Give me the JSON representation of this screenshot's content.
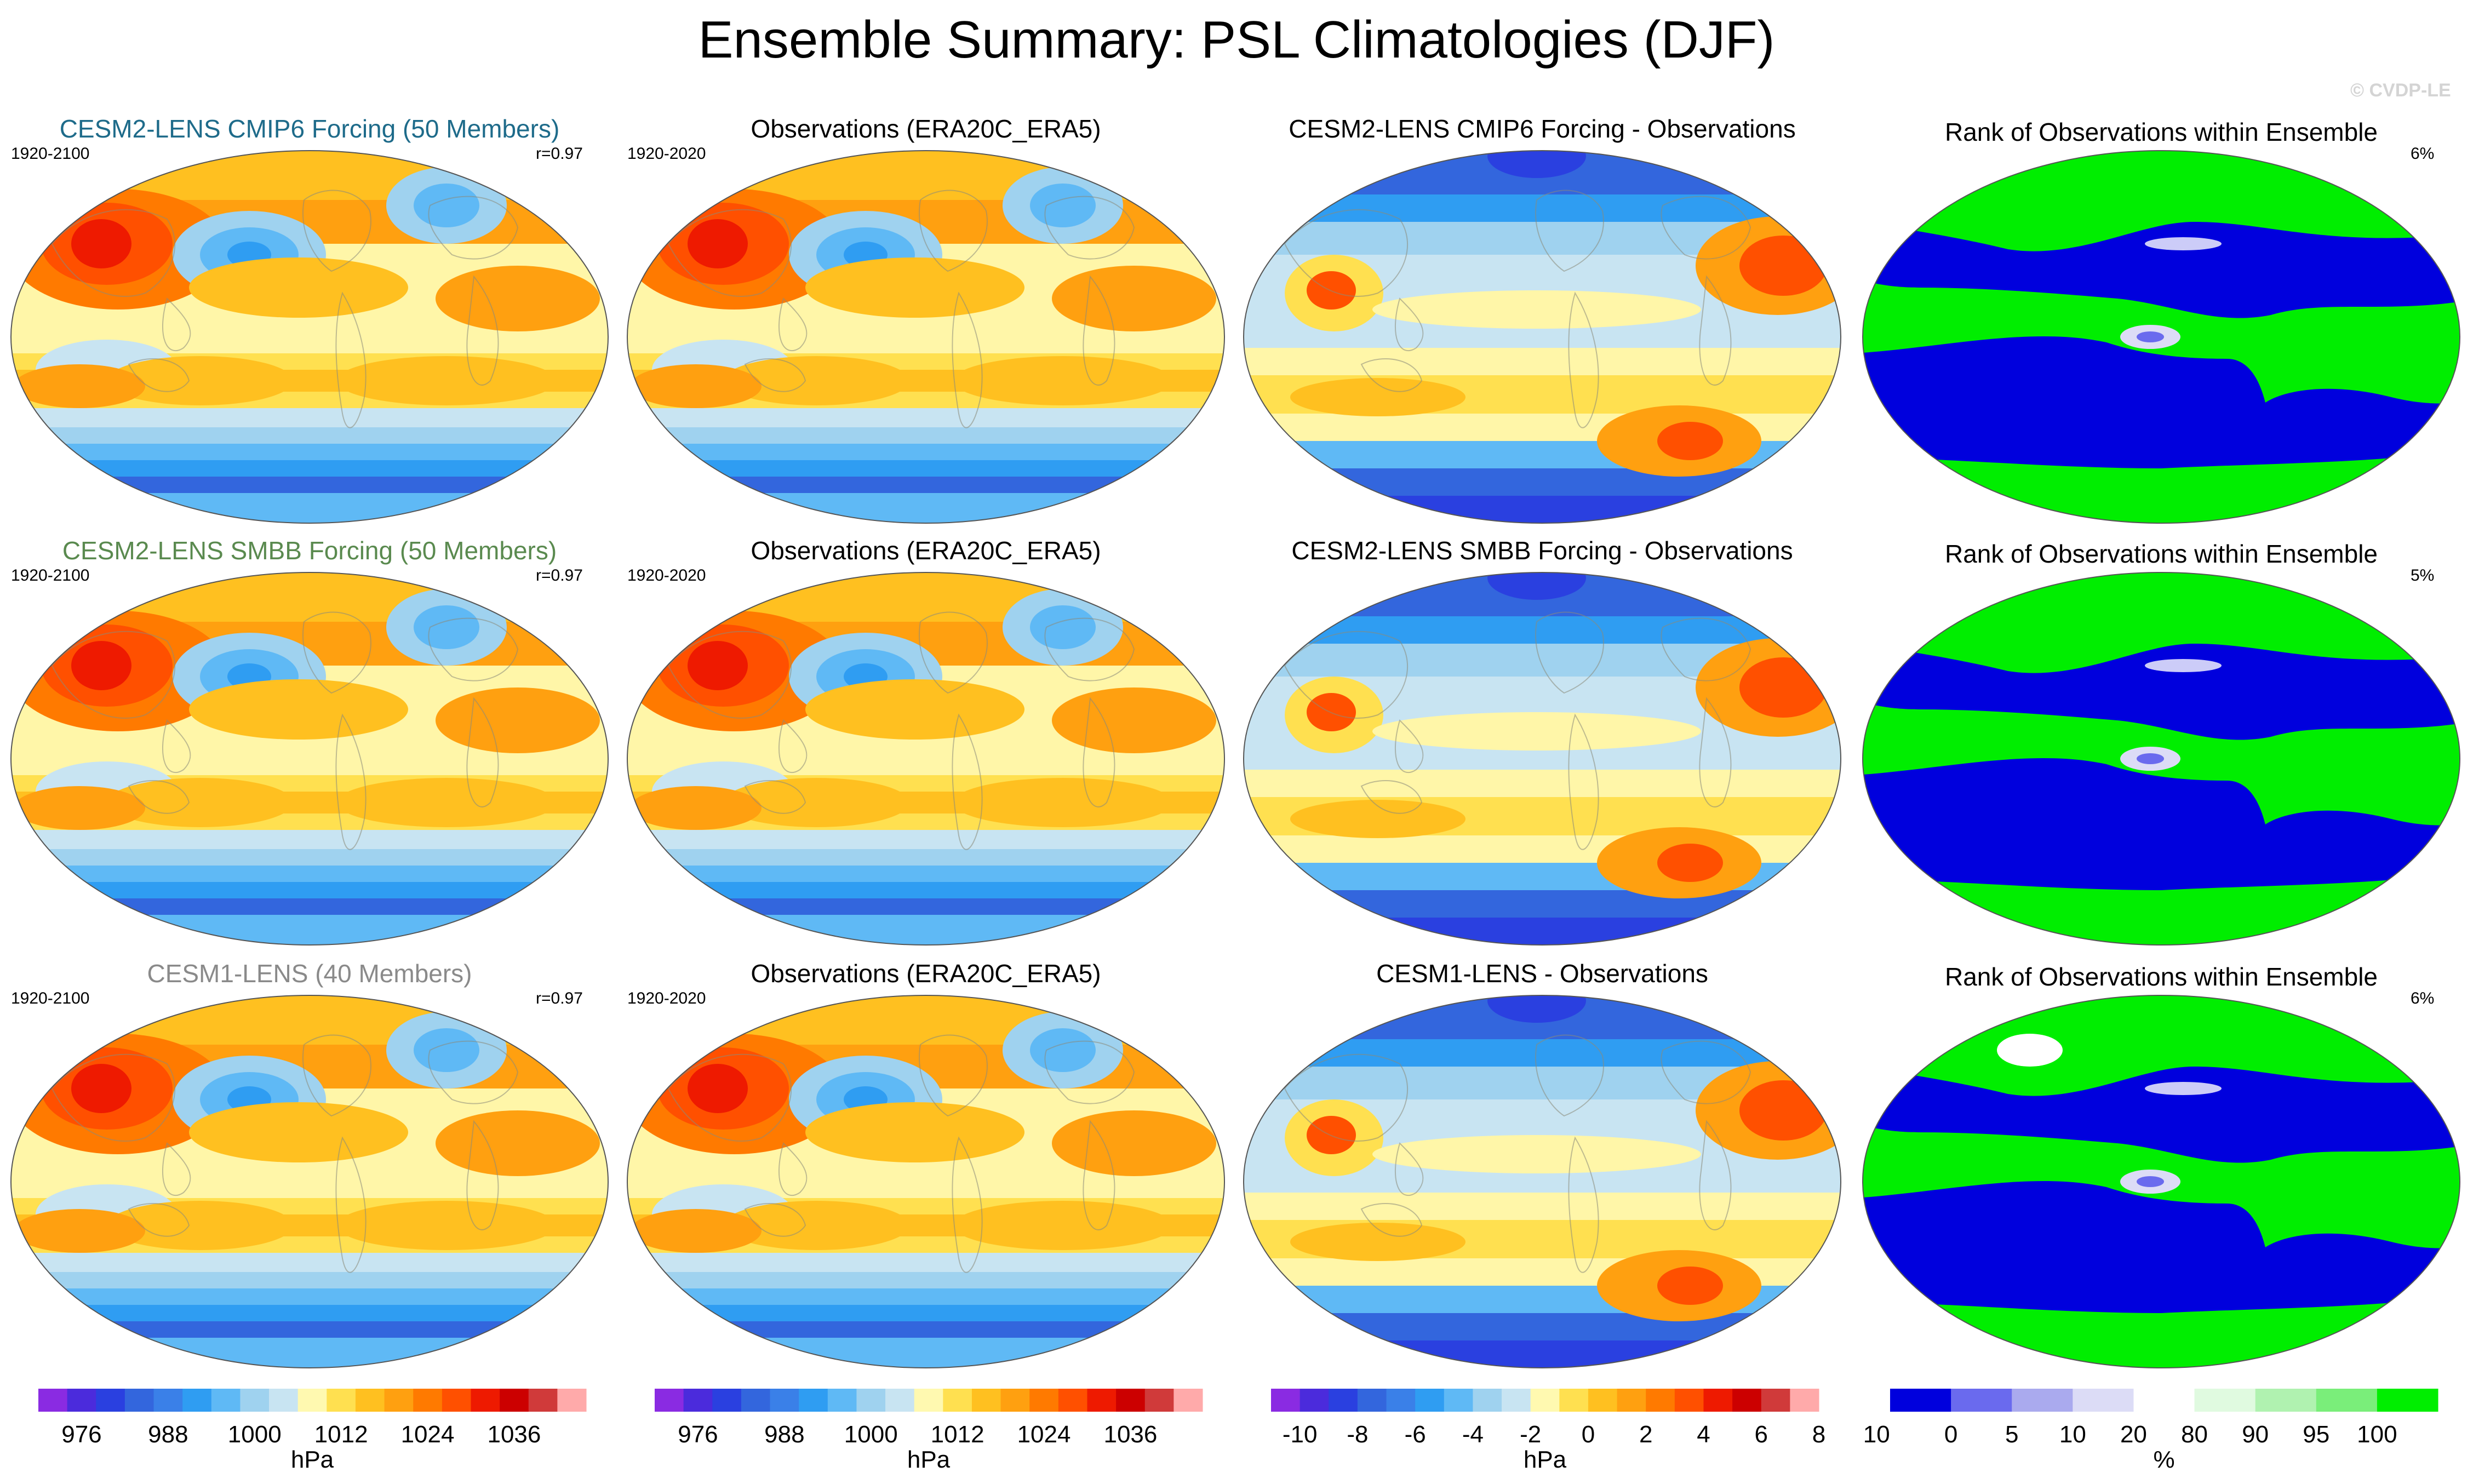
{
  "title": "Ensemble Summary: PSL Climatologies (DJF)",
  "watermark": "© CVDP-LE",
  "rows": [
    {
      "model": {
        "title": "CESM2-LENS CMIP6 Forcing (50 Members)",
        "title_color": "#1e6b8a",
        "period": "1920-2100",
        "r": "r=0.97"
      },
      "obs": {
        "title": "Observations (ERA20C_ERA5)",
        "period": "1920-2020"
      },
      "diff": {
        "title": "CESM2-LENS CMIP6 Forcing - Observations"
      },
      "rank": {
        "title": "Rank of Observations within Ensemble",
        "pct": "6%"
      }
    },
    {
      "model": {
        "title": "CESM2-LENS SMBB Forcing (50 Members)",
        "title_color": "#5a8a4f",
        "period": "1920-2100",
        "r": "r=0.97"
      },
      "obs": {
        "title": "Observations (ERA20C_ERA5)",
        "period": "1920-2020"
      },
      "diff": {
        "title": "CESM2-LENS SMBB Forcing - Observations"
      },
      "rank": {
        "title": "Rank of Observations within Ensemble",
        "pct": "5%"
      }
    },
    {
      "model": {
        "title": "CESM1-LENS (40 Members)",
        "title_color": "#8a8a8a",
        "period": "1920-2100",
        "r": "r=0.97"
      },
      "obs": {
        "title": "Observations (ERA20C_ERA5)",
        "period": "1920-2020"
      },
      "diff": {
        "title": "CESM1-LENS - Observations"
      },
      "rank": {
        "title": "Rank of Observations within Ensemble",
        "pct": "6%"
      }
    }
  ],
  "colorbars": [
    {
      "name": "model-colorbar",
      "unit": "hPa",
      "colors": [
        "#8a2be2",
        "#4b2bdc",
        "#2a40e0",
        "#3366dd",
        "#3a80e8",
        "#2f9df2",
        "#5fb9f5",
        "#9fd2ef",
        "#c8e4f2",
        "#fff9b0",
        "#ffe050",
        "#ffc020",
        "#ffa010",
        "#ff7a00",
        "#ff5000",
        "#ee1a00",
        "#cc0000",
        "#d03a3a",
        "#ffaaaa"
      ],
      "labels": [
        "976",
        "988",
        "1000",
        "1012",
        "1024",
        "1036"
      ],
      "label_positions": [
        1.5,
        4.5,
        7.5,
        10.5,
        13.5,
        16.5
      ]
    },
    {
      "name": "obs-colorbar",
      "unit": "hPa",
      "colors": [
        "#8a2be2",
        "#4b2bdc",
        "#2a40e0",
        "#3366dd",
        "#3a80e8",
        "#2f9df2",
        "#5fb9f5",
        "#9fd2ef",
        "#c8e4f2",
        "#fff9b0",
        "#ffe050",
        "#ffc020",
        "#ffa010",
        "#ff7a00",
        "#ff5000",
        "#ee1a00",
        "#cc0000",
        "#d03a3a",
        "#ffaaaa"
      ],
      "labels": [
        "976",
        "988",
        "1000",
        "1012",
        "1024",
        "1036"
      ],
      "label_positions": [
        1.5,
        4.5,
        7.5,
        10.5,
        13.5,
        16.5
      ]
    },
    {
      "name": "diff-colorbar",
      "unit": "hPa",
      "colors": [
        "#8a2be2",
        "#4b2bdc",
        "#2a40e0",
        "#3366dd",
        "#3a80e8",
        "#2f9df2",
        "#5fb9f5",
        "#9fd2ef",
        "#c8e4f2",
        "#fff9b0",
        "#ffe050",
        "#ffc020",
        "#ffa010",
        "#ff7a00",
        "#ff5000",
        "#ee1a00",
        "#cc0000",
        "#d03a3a",
        "#ffaaaa"
      ],
      "labels": [
        "-10",
        "-8",
        "-6",
        "-4",
        "-2",
        "0",
        "2",
        "4",
        "6",
        "8",
        "10"
      ],
      "label_positions": [
        1,
        3,
        5,
        7,
        9,
        11,
        13,
        15,
        17,
        19,
        21
      ]
    },
    {
      "name": "rank-colorbar",
      "unit": "%",
      "colors": [
        "#0000dd",
        "#6a6aee",
        "#aaaaee",
        "#dcdcf6",
        "#ffffff",
        "#e0fae0",
        "#b0f2b0",
        "#7aee7a",
        "#00ee00"
      ],
      "labels": [
        "0",
        "5",
        "10",
        "20",
        "80",
        "90",
        "95",
        "100"
      ],
      "label_positions": [
        1,
        2,
        3,
        4,
        5,
        6,
        7,
        8
      ]
    }
  ],
  "chart_data": [
    {
      "type": "heatmap",
      "panel": "model",
      "variable": "PSL",
      "season": "DJF",
      "units": "hPa",
      "contour_levels": [
        972,
        976,
        980,
        984,
        988,
        992,
        996,
        1000,
        1004,
        1008,
        1012,
        1016,
        1020,
        1024,
        1028,
        1032,
        1036,
        1040
      ]
    },
    {
      "type": "heatmap",
      "panel": "observations",
      "variable": "PSL",
      "season": "DJF",
      "units": "hPa",
      "contour_levels": [
        972,
        976,
        980,
        984,
        988,
        992,
        996,
        1000,
        1004,
        1008,
        1012,
        1016,
        1020,
        1024,
        1028,
        1032,
        1036,
        1040
      ]
    },
    {
      "type": "heatmap",
      "panel": "difference",
      "variable": "PSL",
      "season": "DJF",
      "units": "hPa",
      "contour_levels": [
        -10,
        -9,
        -8,
        -7,
        -6,
        -5,
        -4,
        -3,
        -2,
        -1,
        0,
        1,
        2,
        3,
        4,
        5,
        6,
        7,
        8,
        9,
        10
      ]
    },
    {
      "type": "heatmap",
      "panel": "rank",
      "variable": "PSL",
      "season": "DJF",
      "units": "%",
      "contour_levels": [
        0,
        5,
        10,
        20,
        80,
        90,
        95,
        100
      ]
    }
  ]
}
